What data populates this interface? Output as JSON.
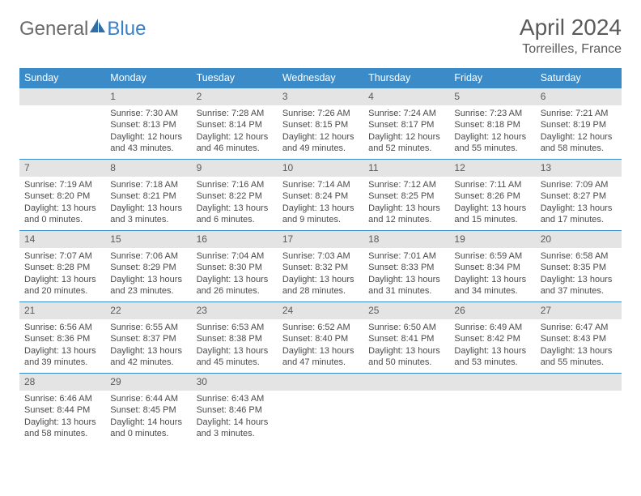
{
  "logo": {
    "text1": "General",
    "text2": "Blue"
  },
  "title": {
    "month": "April 2024",
    "location": "Torreilles, France"
  },
  "colors": {
    "header_bg": "#3b8bc9",
    "header_text": "#ffffff",
    "daynum_bg": "#e4e4e4",
    "row_divider": "#3b8bc9",
    "body_text": "#4a4a4a",
    "title_text": "#5a5a5a"
  },
  "weekdays": [
    "Sunday",
    "Monday",
    "Tuesday",
    "Wednesday",
    "Thursday",
    "Friday",
    "Saturday"
  ],
  "start_weekday": 1,
  "days_in_month": 30,
  "days": {
    "1": {
      "sunrise": "7:30 AM",
      "sunset": "8:13 PM",
      "daylight": "12 hours and 43 minutes."
    },
    "2": {
      "sunrise": "7:28 AM",
      "sunset": "8:14 PM",
      "daylight": "12 hours and 46 minutes."
    },
    "3": {
      "sunrise": "7:26 AM",
      "sunset": "8:15 PM",
      "daylight": "12 hours and 49 minutes."
    },
    "4": {
      "sunrise": "7:24 AM",
      "sunset": "8:17 PM",
      "daylight": "12 hours and 52 minutes."
    },
    "5": {
      "sunrise": "7:23 AM",
      "sunset": "8:18 PM",
      "daylight": "12 hours and 55 minutes."
    },
    "6": {
      "sunrise": "7:21 AM",
      "sunset": "8:19 PM",
      "daylight": "12 hours and 58 minutes."
    },
    "7": {
      "sunrise": "7:19 AM",
      "sunset": "8:20 PM",
      "daylight": "13 hours and 0 minutes."
    },
    "8": {
      "sunrise": "7:18 AM",
      "sunset": "8:21 PM",
      "daylight": "13 hours and 3 minutes."
    },
    "9": {
      "sunrise": "7:16 AM",
      "sunset": "8:22 PM",
      "daylight": "13 hours and 6 minutes."
    },
    "10": {
      "sunrise": "7:14 AM",
      "sunset": "8:24 PM",
      "daylight": "13 hours and 9 minutes."
    },
    "11": {
      "sunrise": "7:12 AM",
      "sunset": "8:25 PM",
      "daylight": "13 hours and 12 minutes."
    },
    "12": {
      "sunrise": "7:11 AM",
      "sunset": "8:26 PM",
      "daylight": "13 hours and 15 minutes."
    },
    "13": {
      "sunrise": "7:09 AM",
      "sunset": "8:27 PM",
      "daylight": "13 hours and 17 minutes."
    },
    "14": {
      "sunrise": "7:07 AM",
      "sunset": "8:28 PM",
      "daylight": "13 hours and 20 minutes."
    },
    "15": {
      "sunrise": "7:06 AM",
      "sunset": "8:29 PM",
      "daylight": "13 hours and 23 minutes."
    },
    "16": {
      "sunrise": "7:04 AM",
      "sunset": "8:30 PM",
      "daylight": "13 hours and 26 minutes."
    },
    "17": {
      "sunrise": "7:03 AM",
      "sunset": "8:32 PM",
      "daylight": "13 hours and 28 minutes."
    },
    "18": {
      "sunrise": "7:01 AM",
      "sunset": "8:33 PM",
      "daylight": "13 hours and 31 minutes."
    },
    "19": {
      "sunrise": "6:59 AM",
      "sunset": "8:34 PM",
      "daylight": "13 hours and 34 minutes."
    },
    "20": {
      "sunrise": "6:58 AM",
      "sunset": "8:35 PM",
      "daylight": "13 hours and 37 minutes."
    },
    "21": {
      "sunrise": "6:56 AM",
      "sunset": "8:36 PM",
      "daylight": "13 hours and 39 minutes."
    },
    "22": {
      "sunrise": "6:55 AM",
      "sunset": "8:37 PM",
      "daylight": "13 hours and 42 minutes."
    },
    "23": {
      "sunrise": "6:53 AM",
      "sunset": "8:38 PM",
      "daylight": "13 hours and 45 minutes."
    },
    "24": {
      "sunrise": "6:52 AM",
      "sunset": "8:40 PM",
      "daylight": "13 hours and 47 minutes."
    },
    "25": {
      "sunrise": "6:50 AM",
      "sunset": "8:41 PM",
      "daylight": "13 hours and 50 minutes."
    },
    "26": {
      "sunrise": "6:49 AM",
      "sunset": "8:42 PM",
      "daylight": "13 hours and 53 minutes."
    },
    "27": {
      "sunrise": "6:47 AM",
      "sunset": "8:43 PM",
      "daylight": "13 hours and 55 minutes."
    },
    "28": {
      "sunrise": "6:46 AM",
      "sunset": "8:44 PM",
      "daylight": "13 hours and 58 minutes."
    },
    "29": {
      "sunrise": "6:44 AM",
      "sunset": "8:45 PM",
      "daylight": "14 hours and 0 minutes."
    },
    "30": {
      "sunrise": "6:43 AM",
      "sunset": "8:46 PM",
      "daylight": "14 hours and 3 minutes."
    }
  },
  "labels": {
    "sunrise": "Sunrise: ",
    "sunset": "Sunset: ",
    "daylight": "Daylight: "
  }
}
